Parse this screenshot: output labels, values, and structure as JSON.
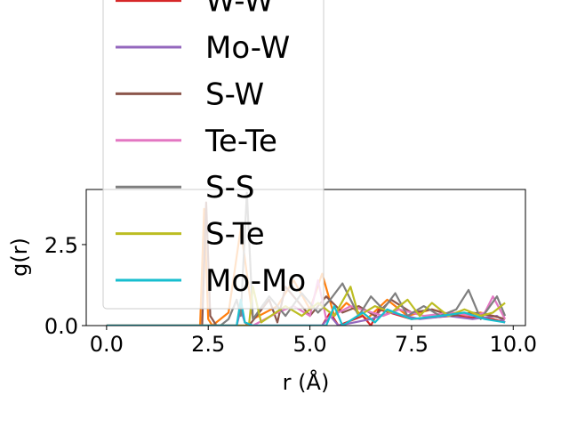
{
  "chart_data": {
    "type": "line",
    "xlabel": "r (Å)",
    "ylabel": "g(r)",
    "xlim": [
      -0.5,
      10.3
    ],
    "ylim": [
      0,
      4.2
    ],
    "xticks": [
      0.0,
      2.5,
      5.0,
      7.5,
      10.0
    ],
    "xtick_labels": [
      "0.0",
      "2.5",
      "5.0",
      "7.5",
      "10.0"
    ],
    "yticks": [
      0.0,
      2.5
    ],
    "ytick_labels": [
      "0.0",
      "2.5"
    ],
    "grid": false,
    "legend_position": "upper-left (extends above plot)",
    "series": [
      {
        "name": "",
        "color": "#ff7f0e",
        "x": [
          0,
          2.0,
          2.3,
          2.4,
          2.5,
          2.6,
          3.0,
          3.3,
          3.6,
          4.2,
          4.6,
          5.0,
          5.3,
          5.6,
          5.9,
          6.4,
          6.9,
          7.4,
          8.0,
          8.6,
          9.2,
          9.8
        ],
        "y": [
          0,
          0,
          0,
          3.6,
          0.2,
          0,
          0.4,
          3.0,
          0.2,
          0.6,
          1.4,
          0.5,
          1.6,
          0.3,
          0.7,
          0.2,
          0.8,
          0.3,
          0.5,
          0.3,
          0.4,
          0.2
        ]
      },
      {
        "name": "W-W",
        "color": "#d62728",
        "x": [
          0,
          3.0,
          3.1,
          3.2,
          3.3,
          3.4,
          3.5,
          5.3,
          5.5,
          5.7,
          6.3,
          6.5,
          6.7,
          7.5,
          8.5,
          9.5,
          9.8
        ],
        "y": [
          0,
          0,
          0,
          0,
          0.6,
          0.1,
          0,
          0,
          0.4,
          0,
          0.3,
          0,
          0.5,
          0.2,
          0.3,
          0.2,
          0.1
        ]
      },
      {
        "name": "Mo-W",
        "color": "#9467bd",
        "x": [
          0,
          3.0,
          3.2,
          3.3,
          3.4,
          3.6,
          5.3,
          5.5,
          5.7,
          6.5,
          7.0,
          7.7,
          8.4,
          9.0,
          9.6,
          9.8
        ],
        "y": [
          0,
          0,
          0,
          0.5,
          0.1,
          0,
          0,
          0.3,
          0,
          0.2,
          0.4,
          0.2,
          0.3,
          0.2,
          0.3,
          0.1
        ]
      },
      {
        "name": "S-W",
        "color": "#8c564b",
        "x": [
          0,
          2.2,
          2.35,
          2.45,
          2.55,
          2.7,
          3.5,
          4.0,
          4.2,
          4.4,
          5.0,
          5.4,
          5.8,
          6.2,
          6.6,
          7.0,
          7.5,
          8.0,
          8.5,
          9.0,
          9.5,
          9.8
        ],
        "y": [
          0,
          0,
          0,
          3.8,
          0.3,
          0,
          0,
          0.8,
          0.1,
          1.2,
          0.3,
          0.9,
          0.4,
          0.6,
          0.3,
          0.8,
          0.4,
          0.5,
          0.3,
          0.4,
          0.3,
          0.2
        ]
      },
      {
        "name": "Te-Te",
        "color": "#e377c2",
        "x": [
          0,
          3.3,
          3.6,
          4.2,
          4.6,
          5.0,
          5.2,
          5.4,
          6.0,
          6.8,
          7.2,
          7.8,
          8.5,
          9.0,
          9.3,
          9.5,
          9.8
        ],
        "y": [
          0,
          0,
          0,
          0.4,
          0.6,
          0.3,
          1.4,
          0.2,
          0.6,
          0.3,
          0.5,
          0.3,
          0.4,
          0.3,
          0.4,
          0.9,
          0.2
        ]
      },
      {
        "name": "S-S",
        "color": "#7f7f7f",
        "x": [
          0,
          2.8,
          3.0,
          3.2,
          3.3,
          3.45,
          3.6,
          4.0,
          4.4,
          4.8,
          5.2,
          5.5,
          5.8,
          6.2,
          6.5,
          6.8,
          7.1,
          7.4,
          7.8,
          8.2,
          8.6,
          8.9,
          9.2,
          9.6,
          9.8
        ],
        "y": [
          0,
          0,
          0.2,
          0.8,
          0.3,
          4.1,
          0.2,
          0.9,
          0.3,
          1.0,
          0.4,
          0.8,
          1.3,
          0.3,
          0.9,
          0.5,
          1.0,
          0.3,
          0.6,
          0.3,
          0.5,
          1.1,
          0.2,
          0.9,
          0.3
        ]
      },
      {
        "name": "S-Te",
        "color": "#bcbd22",
        "x": [
          0,
          3.3,
          3.5,
          3.6,
          3.8,
          4.4,
          4.8,
          5.2,
          5.6,
          6.0,
          6.2,
          6.6,
          7.0,
          7.4,
          7.7,
          8.0,
          8.4,
          8.8,
          9.2,
          9.5,
          9.8
        ],
        "y": [
          0,
          0,
          0,
          1.2,
          0.1,
          0.6,
          0.3,
          0.7,
          0.3,
          1.2,
          0.3,
          0.6,
          0.4,
          0.8,
          0.3,
          0.7,
          0.3,
          0.5,
          0.3,
          0.4,
          0.7
        ]
      },
      {
        "name": "Mo-Mo",
        "color": "#17becf",
        "x": [
          0,
          3.0,
          3.2,
          3.3,
          3.4,
          3.6,
          5.4,
          5.6,
          5.8,
          6.3,
          6.6,
          6.9,
          7.5,
          8.2,
          8.8,
          9.3,
          9.8
        ],
        "y": [
          0,
          0,
          0,
          0.8,
          0.1,
          0,
          0,
          0.6,
          0,
          0.4,
          0.1,
          0.5,
          0.2,
          0.3,
          0.4,
          0.2,
          0.1
        ]
      }
    ]
  }
}
